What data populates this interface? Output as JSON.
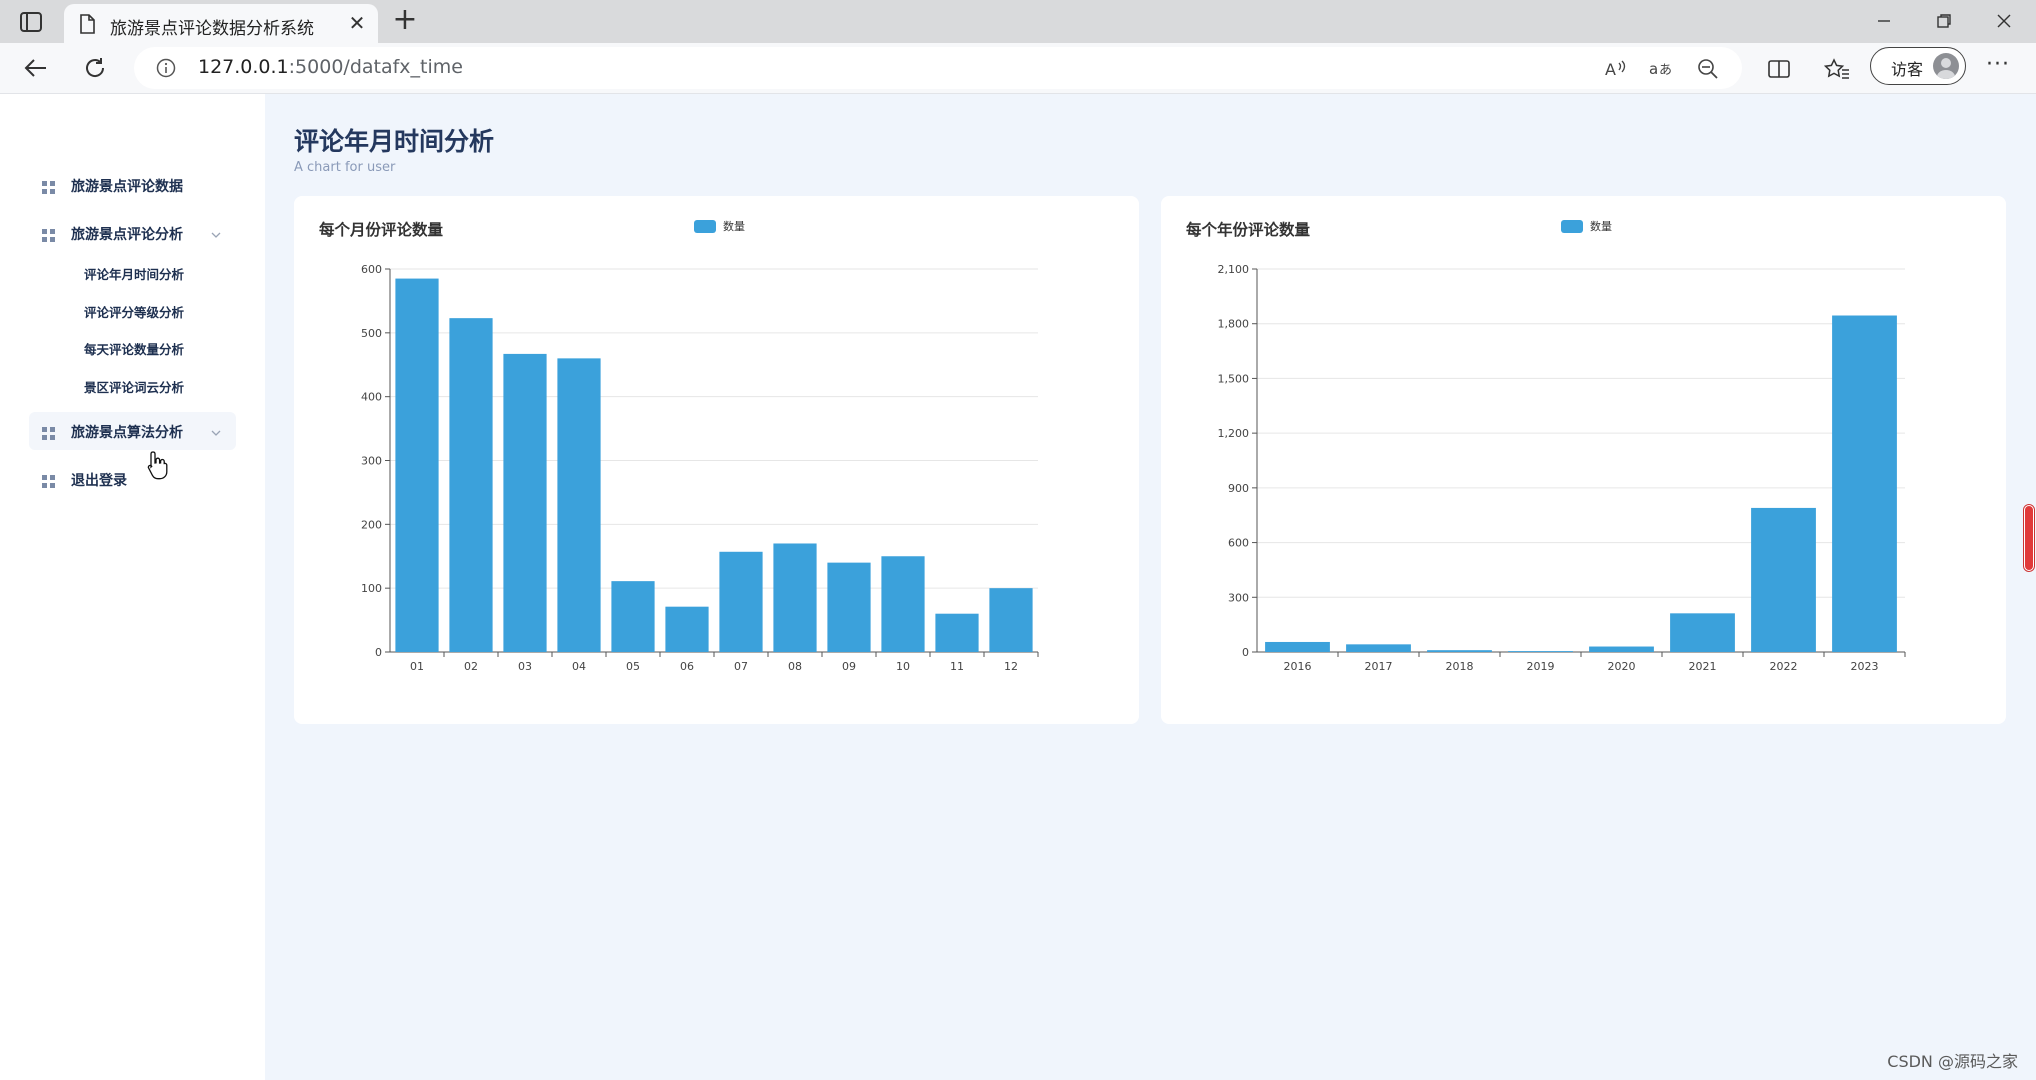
{
  "browser": {
    "tab_title": "旅游景点评论数据分析系统",
    "url_host": "127.0.0.1",
    "url_path": ":5000/datafx_time",
    "guest_label": "访客"
  },
  "sidebar": {
    "items": [
      {
        "label": "旅游景点评论数据"
      },
      {
        "label": "旅游景点评论分析"
      },
      {
        "label": "旅游景点算法分析"
      },
      {
        "label": "退出登录"
      }
    ],
    "subitems": [
      {
        "label": "评论年月时间分析"
      },
      {
        "label": "评论评分等级分析"
      },
      {
        "label": "每天评论数量分析"
      },
      {
        "label": "景区评论词云分析"
      }
    ]
  },
  "main": {
    "title": "评论年月时间分析",
    "subtitle": "A chart for user"
  },
  "colors": {
    "bar": "#3ba1db",
    "accent": "#24385e"
  },
  "chart_data": [
    {
      "type": "bar",
      "title": "每个月份评论数量",
      "categories": [
        "01",
        "02",
        "03",
        "04",
        "05",
        "06",
        "07",
        "08",
        "09",
        "10",
        "11",
        "12"
      ],
      "series": [
        {
          "name": "数量",
          "values": [
            585,
            523,
            467,
            460,
            111,
            71,
            157,
            170,
            140,
            150,
            60,
            100
          ]
        }
      ],
      "ylim": [
        0,
        600
      ],
      "yticks": [
        0,
        100,
        200,
        300,
        400,
        500,
        600
      ],
      "ytick_labels": [
        "0",
        "100",
        "200",
        "300",
        "400",
        "500",
        "600"
      ],
      "grid": true,
      "legend_position": "top-center"
    },
    {
      "type": "bar",
      "title": "每个年份评论数量",
      "categories": [
        "2016",
        "2017",
        "2018",
        "2019",
        "2020",
        "2021",
        "2022",
        "2023"
      ],
      "series": [
        {
          "name": "数量",
          "values": [
            55,
            42,
            10,
            5,
            30,
            212,
            790,
            1845
          ]
        }
      ],
      "ylim": [
        0,
        2100
      ],
      "yticks": [
        0,
        300,
        600,
        900,
        1200,
        1500,
        1800,
        2100
      ],
      "ytick_labels": [
        "0",
        "300",
        "600",
        "900",
        "1,200",
        "1,500",
        "1,800",
        "2,100"
      ],
      "grid": true,
      "legend_position": "top-center"
    }
  ],
  "watermark": "CSDN @源码之家"
}
